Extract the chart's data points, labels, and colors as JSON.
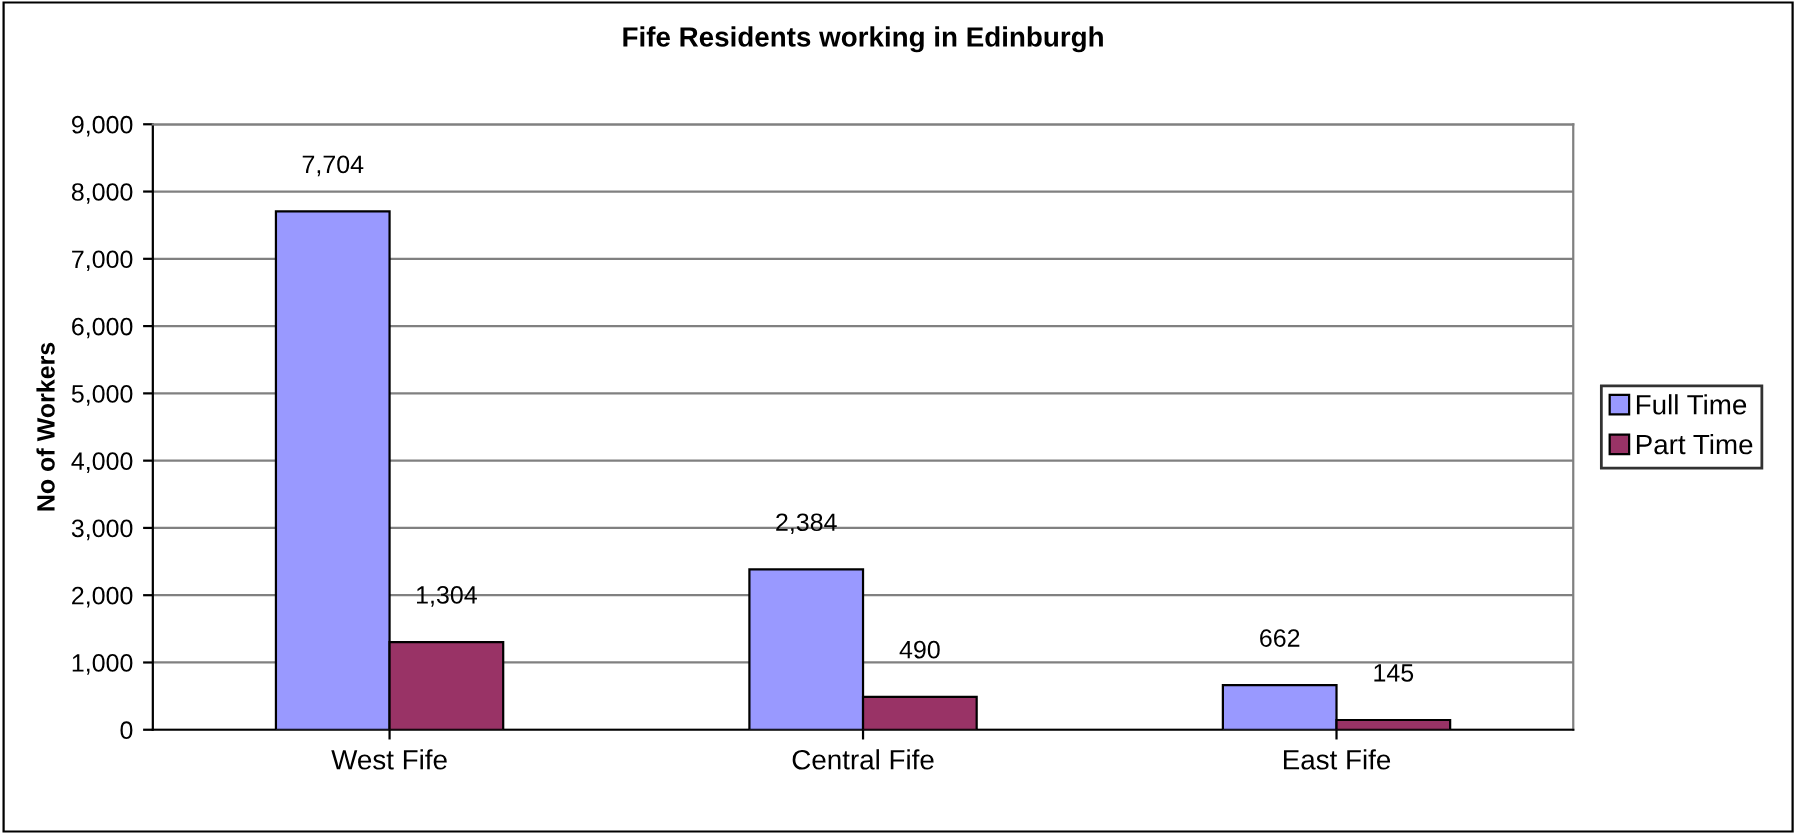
{
  "chart_data": {
    "type": "bar",
    "title": "Fife Residents working in Edinburgh",
    "ylabel": "No of Workers",
    "categories": [
      "West Fife",
      "Central Fife",
      "East Fife"
    ],
    "series": [
      {
        "name": "Full Time",
        "color": "#9999ff",
        "values": [
          7704,
          2384,
          662
        ],
        "value_labels": [
          "7,704",
          "2,384",
          "662"
        ]
      },
      {
        "name": "Part Time",
        "color": "#993366",
        "values": [
          1304,
          490,
          145
        ],
        "value_labels": [
          "1,304",
          "490",
          "145"
        ]
      }
    ],
    "ylim": [
      0,
      9000
    ],
    "yticks": [
      {
        "value": 0,
        "label": "0"
      },
      {
        "value": 1000,
        "label": "1,000"
      },
      {
        "value": 2000,
        "label": "2,000"
      },
      {
        "value": 3000,
        "label": "3,000"
      },
      {
        "value": 4000,
        "label": "4,000"
      },
      {
        "value": 5000,
        "label": "5,000"
      },
      {
        "value": 6000,
        "label": "6,000"
      },
      {
        "value": 7000,
        "label": "7,000"
      },
      {
        "value": 8000,
        "label": "8,000"
      },
      {
        "value": 9000,
        "label": "9,000"
      }
    ],
    "grid": "y",
    "legend": "right"
  }
}
